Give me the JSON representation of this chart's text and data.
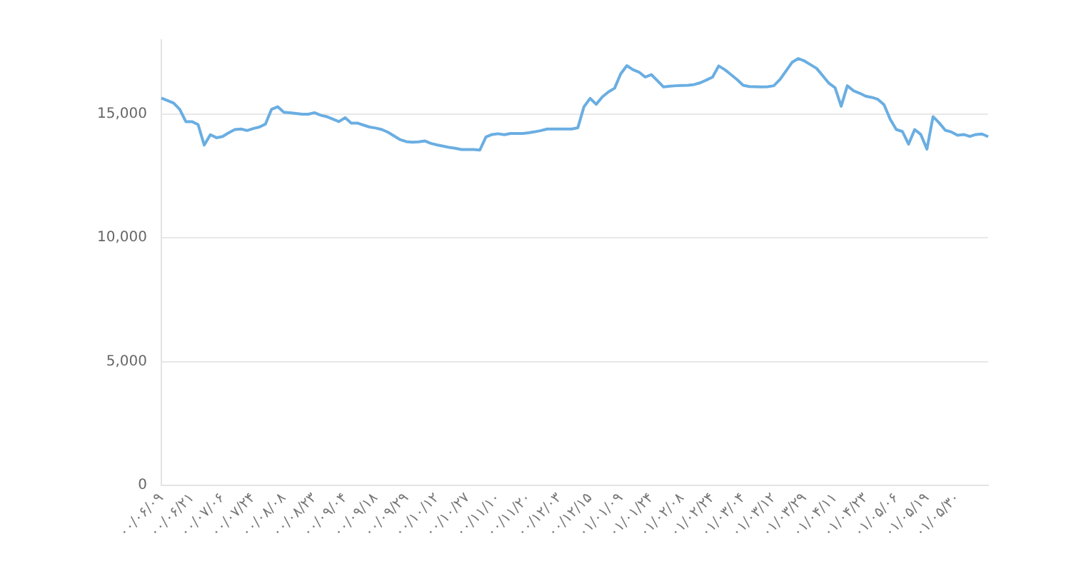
{
  "chart_data": {
    "type": "line",
    "categories": [
      "۰۰/۰۶/۰۹",
      null,
      null,
      null,
      null,
      "۰۰/۰۶/۲۱",
      null,
      null,
      null,
      null,
      "۰۰/۰۷/۰۶",
      null,
      null,
      null,
      null,
      "۰۰/۰۷/۲۴",
      null,
      null,
      null,
      null,
      "۰۰/۰۸/۰۸",
      null,
      null,
      null,
      null,
      "۰۰/۰۸/۲۳",
      null,
      null,
      null,
      null,
      "۰۰/۰۹/۰۴",
      null,
      null,
      null,
      null,
      "۰۰/۰۹/۱۸",
      null,
      null,
      null,
      null,
      "۰۰/۰۹/۲۹",
      null,
      null,
      null,
      null,
      "۰۰/۱۰/۱۲",
      null,
      null,
      null,
      null,
      "۰۰/۱۰/۲۷",
      null,
      null,
      null,
      null,
      "۰۰/۱۱/۱۰",
      null,
      null,
      null,
      null,
      "۰۰/۱۱/۲۰",
      null,
      null,
      null,
      null,
      "۰۰/۱۲/۰۳",
      null,
      null,
      null,
      null,
      "۰۰/۱۲/۱۵",
      null,
      null,
      null,
      null,
      "۰۱/۰۱/۰۹",
      null,
      null,
      null,
      null,
      "۰۱/۰۱/۲۴",
      null,
      null,
      null,
      null,
      "۰۱/۰۲/۰۸",
      null,
      null,
      null,
      null,
      "۰۱/۰۲/۲۴",
      null,
      null,
      null,
      null,
      "۰۱/۰۳/۰۴",
      null,
      null,
      null,
      null,
      "۰۱/۰۳/۱۲",
      null,
      null,
      null,
      null,
      "۰۱/۰۳/۲۹",
      null,
      null,
      null,
      null,
      "۰۱/۰۴/۱۱",
      null,
      null,
      null,
      null,
      "۰۱/۰۴/۲۳",
      null,
      null,
      null,
      null,
      "۰۱/۰۵/۰۶",
      null,
      null,
      null,
      null,
      "۰۱/۰۵/۱۹",
      null,
      null,
      null,
      null,
      "۰۱/۰۵/۳۰",
      null,
      null,
      null,
      null,
      null
    ],
    "series": [
      {
        "color": "#6aaee2",
        "values": [
          15650,
          15550,
          15450,
          15200,
          14700,
          14700,
          14580,
          13750,
          14170,
          14050,
          14100,
          14250,
          14380,
          14400,
          14340,
          14420,
          14480,
          14600,
          15200,
          15300,
          15080,
          15060,
          15030,
          15000,
          15000,
          15060,
          14960,
          14900,
          14800,
          14700,
          14860,
          14640,
          14640,
          14560,
          14480,
          14440,
          14380,
          14270,
          14120,
          13970,
          13890,
          13870,
          13880,
          13920,
          13820,
          13760,
          13710,
          13660,
          13620,
          13570,
          13570,
          13570,
          13550,
          14080,
          14180,
          14210,
          14170,
          14220,
          14220,
          14220,
          14250,
          14290,
          14340,
          14400,
          14400,
          14400,
          14400,
          14400,
          14450,
          15300,
          15640,
          15400,
          15700,
          15900,
          16050,
          16630,
          16960,
          16800,
          16700,
          16500,
          16600,
          16350,
          16100,
          16130,
          16150,
          16160,
          16170,
          16200,
          16270,
          16380,
          16500,
          16950,
          16800,
          16600,
          16400,
          16170,
          16120,
          16110,
          16100,
          16110,
          16150,
          16400,
          16750,
          17100,
          17250,
          17150,
          17000,
          16850,
          16550,
          16250,
          16070,
          15320,
          16150,
          15950,
          15850,
          15730,
          15680,
          15600,
          15380,
          14800,
          14380,
          14300,
          13790,
          14380,
          14180,
          13590,
          14900,
          14650,
          14350,
          14280,
          14150,
          14180,
          14100,
          14180,
          14200,
          14090
        ]
      }
    ],
    "ylim": [
      0,
      18000
    ],
    "yticks": [
      {
        "value": 0,
        "label": "0"
      },
      {
        "value": 5000,
        "label": "5,000"
      },
      {
        "value": 10000,
        "label": "10,000"
      },
      {
        "value": 15000,
        "label": "15,000"
      }
    ],
    "grid": "y",
    "marker": "none",
    "line_style": "solid",
    "legend": false
  }
}
